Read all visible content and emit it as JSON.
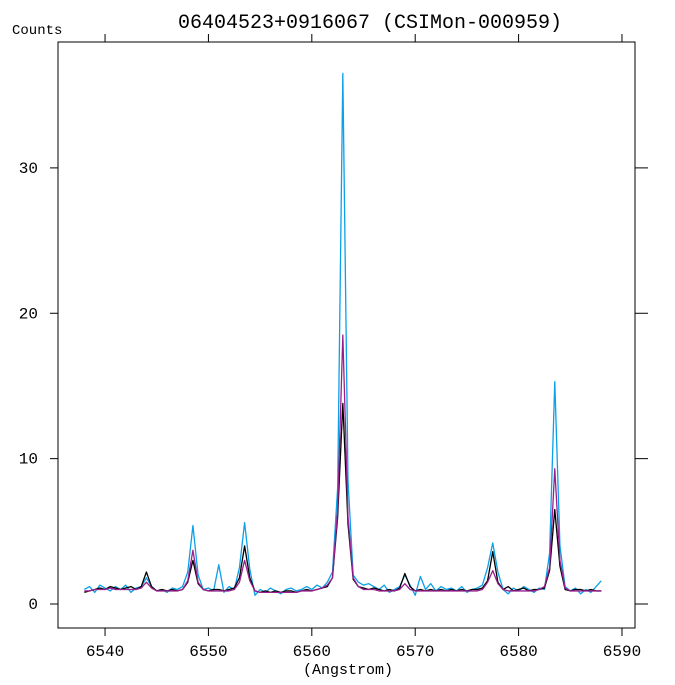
{
  "chart_data": {
    "type": "line",
    "title": "06404523+0916067 (CSIMon-000959)",
    "ylabel": "Counts",
    "xlabel": "(Angstrom)",
    "xlim": [
      6535.45,
      6591.26
    ],
    "xticks": [
      6540,
      6550,
      6560,
      6570,
      6580,
      6590
    ],
    "ylim": [
      -1.65,
      38.66
    ],
    "yticks": [
      0,
      10,
      20,
      30
    ],
    "x": [
      6538,
      6538.5,
      6539,
      6539.5,
      6540,
      6540.5,
      6541,
      6541.5,
      6542,
      6542.5,
      6543,
      6543.5,
      6544,
      6544.5,
      6545,
      6545.5,
      6546,
      6546.5,
      6547,
      6547.5,
      6548,
      6548.5,
      6549,
      6549.5,
      6550,
      6550.5,
      6551,
      6551.5,
      6552,
      6552.5,
      6553,
      6553.5,
      6554,
      6554.5,
      6555,
      6555.5,
      6556,
      6556.5,
      6557,
      6557.5,
      6558,
      6558.5,
      6559,
      6559.5,
      6560,
      6560.5,
      6561,
      6561.5,
      6562,
      6562.5,
      6563,
      6563.5,
      6564,
      6564.5,
      6565,
      6565.5,
      6566,
      6566.5,
      6567,
      6567.5,
      6568,
      6568.5,
      6569,
      6569.5,
      6570,
      6570.5,
      6571,
      6571.5,
      6572,
      6572.5,
      6573,
      6573.5,
      6574,
      6574.5,
      6575,
      6575.5,
      6576,
      6576.5,
      6577,
      6577.5,
      6578,
      6578.5,
      6579,
      6579.5,
      6580,
      6580.5,
      6581,
      6581.5,
      6582,
      6582.5,
      6583,
      6583.5,
      6584,
      6584.5,
      6585,
      6585.5,
      6586,
      6586.5,
      6587,
      6587.5,
      6588
    ],
    "series": [
      {
        "color": "#0ba0e8",
        "values": [
          1.0,
          1.2,
          0.8,
          1.3,
          1.1,
          0.9,
          1.2,
          1.0,
          1.3,
          0.8,
          1.1,
          1.2,
          1.8,
          1.2,
          0.9,
          1.0,
          0.8,
          1.1,
          1.0,
          1.2,
          2.2,
          5.4,
          2.0,
          1.0,
          1.1,
          0.9,
          2.7,
          0.8,
          1.2,
          1.0,
          2.5,
          5.6,
          2.4,
          0.6,
          1.0,
          0.8,
          1.1,
          0.9,
          0.7,
          1.0,
          1.1,
          0.9,
          1.0,
          1.2,
          1.0,
          1.3,
          1.1,
          1.5,
          2.2,
          8.0,
          36.5,
          8.5,
          2.0,
          1.5,
          1.3,
          1.4,
          1.2,
          1.0,
          1.3,
          0.8,
          1.0,
          1.2,
          2.0,
          1.3,
          0.6,
          1.9,
          1.0,
          1.4,
          0.9,
          1.2,
          1.0,
          1.1,
          0.9,
          1.2,
          0.8,
          1.0,
          1.1,
          1.3,
          2.5,
          4.2,
          2.2,
          1.0,
          0.7,
          1.1,
          0.9,
          1.2,
          1.0,
          0.8,
          1.1,
          1.0,
          3.5,
          15.3,
          4.0,
          1.2,
          0.9,
          1.1,
          0.7,
          1.0,
          0.8,
          1.2,
          1.6
        ]
      },
      {
        "color": "#000000",
        "values": [
          0.8,
          0.9,
          1.0,
          1.1,
          1.0,
          1.2,
          1.1,
          1.0,
          1.1,
          1.2,
          1.0,
          1.2,
          2.2,
          1.2,
          0.9,
          1.0,
          0.9,
          1.0,
          0.9,
          1.0,
          1.5,
          3.0,
          1.4,
          1.0,
          0.9,
          1.0,
          1.0,
          0.9,
          1.0,
          1.1,
          1.8,
          4.0,
          1.8,
          0.9,
          0.8,
          0.9,
          0.8,
          0.9,
          0.8,
          0.9,
          0.9,
          0.8,
          0.9,
          1.0,
          0.9,
          1.0,
          1.1,
          1.2,
          1.8,
          6.0,
          13.8,
          5.5,
          1.7,
          1.2,
          1.1,
          1.0,
          1.1,
          1.0,
          0.9,
          1.0,
          0.9,
          1.1,
          2.1,
          1.2,
          0.9,
          1.0,
          0.9,
          1.0,
          0.9,
          1.0,
          0.9,
          1.0,
          0.9,
          1.0,
          0.9,
          1.0,
          1.0,
          1.1,
          1.6,
          3.6,
          1.5,
          1.0,
          1.2,
          0.9,
          1.0,
          1.1,
          0.9,
          1.0,
          1.0,
          1.1,
          2.3,
          6.5,
          2.6,
          1.0,
          0.9,
          1.0,
          1.0,
          0.9,
          1.0,
          0.9,
          0.9
        ]
      },
      {
        "color": "#9a1f8e",
        "values": [
          0.9,
          0.9,
          1.0,
          1.0,
          1.0,
          1.1,
          1.0,
          1.0,
          1.0,
          1.0,
          1.0,
          1.1,
          1.5,
          1.1,
          0.9,
          0.9,
          0.9,
          0.9,
          0.9,
          1.0,
          1.6,
          3.7,
          1.5,
          1.0,
          0.9,
          0.9,
          0.9,
          0.9,
          0.9,
          1.0,
          1.5,
          3.0,
          1.6,
          0.9,
          0.8,
          0.8,
          0.8,
          0.8,
          0.8,
          0.8,
          0.8,
          0.8,
          0.9,
          0.9,
          0.9,
          1.0,
          1.1,
          1.3,
          1.8,
          6.5,
          18.5,
          6.0,
          1.8,
          1.2,
          1.0,
          1.0,
          1.0,
          0.9,
          0.9,
          0.9,
          0.9,
          1.0,
          1.4,
          1.0,
          0.9,
          0.9,
          0.9,
          0.9,
          0.9,
          0.9,
          0.9,
          0.9,
          0.9,
          0.9,
          0.9,
          0.9,
          0.9,
          1.0,
          1.5,
          2.3,
          1.4,
          1.0,
          0.9,
          0.9,
          0.9,
          0.9,
          0.9,
          0.9,
          1.0,
          1.2,
          2.5,
          9.3,
          3.0,
          1.1,
          0.9,
          0.9,
          0.9,
          0.9,
          0.9,
          0.9,
          0.9
        ]
      }
    ]
  }
}
